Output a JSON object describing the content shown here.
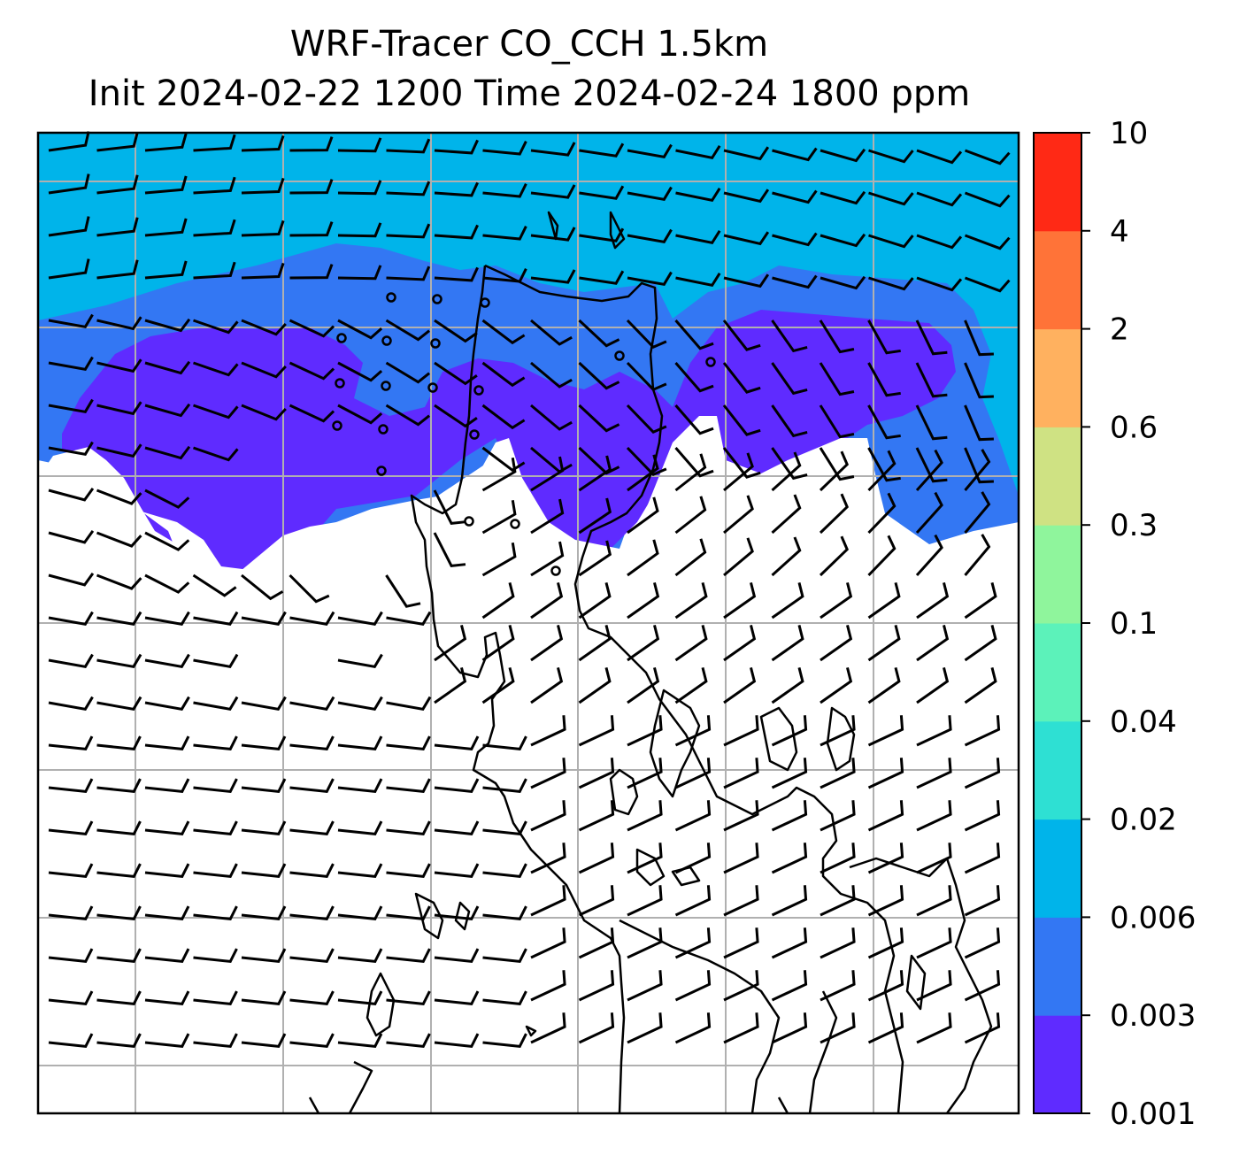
{
  "title": {
    "line1": "WRF-Tracer CO_CCH 1.5km",
    "line2": "Init 2024-02-22 1200 Time 2024-02-24 1800 ppm"
  },
  "colorbar": {
    "levels": [
      "0.001",
      "0.003",
      "0.006",
      "0.02",
      "0.04",
      "0.1",
      "0.3",
      "0.6",
      "2",
      "4",
      "10"
    ],
    "colors": [
      "#5f2bff",
      "#3377f3",
      "#00b4ea",
      "#2ee0d3",
      "#5cf2ba",
      "#8ff59c",
      "#cfe283",
      "#ffb15f",
      "#ff7338",
      "#ff2915"
    ]
  },
  "map": {
    "gridlines": "on",
    "gridline_color": "#b0b0b0",
    "coastline_color": "#000000",
    "background": "#ffffff",
    "wind_barbs": "on",
    "calm_markers": "on"
  },
  "chart_data": {
    "type": "heatmap",
    "title": "WRF-Tracer CO_CCH 1.5km\nInit 2024-02-22 1200 Time 2024-02-24 1800 ppm",
    "colorbar_ticks": [
      "0.001",
      "0.003",
      "0.006",
      "0.02",
      "0.04",
      "0.1",
      "0.3",
      "0.6",
      "2",
      "4",
      "10"
    ],
    "regions": [
      {
        "band": "0.006–0.02",
        "color": "#00b4ea",
        "area": "northern part of the map"
      },
      {
        "band": "0.003–0.006",
        "color": "#3377f3",
        "area": "transition band north of the plume core"
      },
      {
        "band": "0.001–0.003",
        "color": "#5f2bff",
        "area": "central-west and central-east plume"
      },
      {
        "band": "below 0.001",
        "color": "#ffffff",
        "area": "southern part of the map"
      }
    ]
  }
}
